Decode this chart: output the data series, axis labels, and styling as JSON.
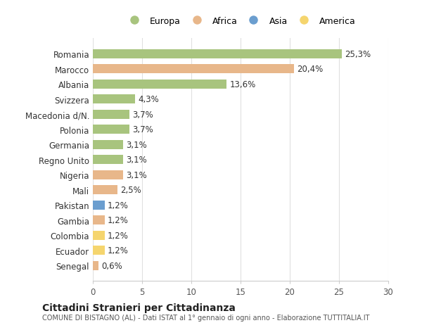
{
  "categories": [
    "Romania",
    "Marocco",
    "Albania",
    "Svizzera",
    "Macedonia d/N.",
    "Polonia",
    "Germania",
    "Regno Unito",
    "Nigeria",
    "Mali",
    "Pakistan",
    "Gambia",
    "Colombia",
    "Ecuador",
    "Senegal"
  ],
  "values": [
    25.3,
    20.4,
    13.6,
    4.3,
    3.7,
    3.7,
    3.1,
    3.1,
    3.1,
    2.5,
    1.2,
    1.2,
    1.2,
    1.2,
    0.6
  ],
  "labels": [
    "25,3%",
    "20,4%",
    "13,6%",
    "4,3%",
    "3,7%",
    "3,7%",
    "3,1%",
    "3,1%",
    "3,1%",
    "2,5%",
    "1,2%",
    "1,2%",
    "1,2%",
    "1,2%",
    "0,6%"
  ],
  "colors": [
    "#a8c47e",
    "#e8b78a",
    "#a8c47e",
    "#a8c47e",
    "#a8c47e",
    "#a8c47e",
    "#a8c47e",
    "#a8c47e",
    "#e8b78a",
    "#e8b78a",
    "#6b9ecf",
    "#e8b78a",
    "#f5d56e",
    "#f5d56e",
    "#e8b78a"
  ],
  "legend_labels": [
    "Europa",
    "Africa",
    "Asia",
    "America"
  ],
  "legend_colors": [
    "#a8c47e",
    "#e8b78a",
    "#6b9ecf",
    "#f5d56e"
  ],
  "title": "Cittadini Stranieri per Cittadinanza",
  "subtitle": "COMUNE DI BISTAGNO (AL) - Dati ISTAT al 1° gennaio di ogni anno - Elaborazione TUTTITALIA.IT",
  "xlim": [
    0,
    30
  ],
  "xticks": [
    0,
    5,
    10,
    15,
    20,
    25,
    30
  ],
  "background_color": "#ffffff",
  "grid_color": "#e0e0e0",
  "bar_height": 0.6
}
